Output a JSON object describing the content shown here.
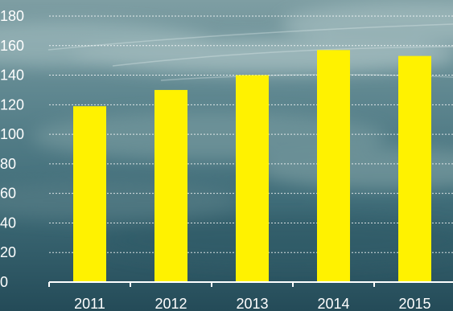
{
  "chart_data": {
    "type": "bar",
    "title": "",
    "xlabel": "",
    "ylabel": "",
    "categories": [
      "2011",
      "2012",
      "2013",
      "2014",
      "2015"
    ],
    "values": [
      119,
      130,
      140,
      157,
      153
    ],
    "ylim": [
      0,
      180
    ],
    "yticks": [
      "0",
      "20",
      "40",
      "60",
      "80",
      "100",
      "120",
      "140",
      "160",
      "180"
    ],
    "grid": true,
    "legend": "none",
    "colors": {
      "bar": "#fff200",
      "text": "#ffffff",
      "grid": "#ffffff",
      "axis": "#ffffff"
    }
  }
}
